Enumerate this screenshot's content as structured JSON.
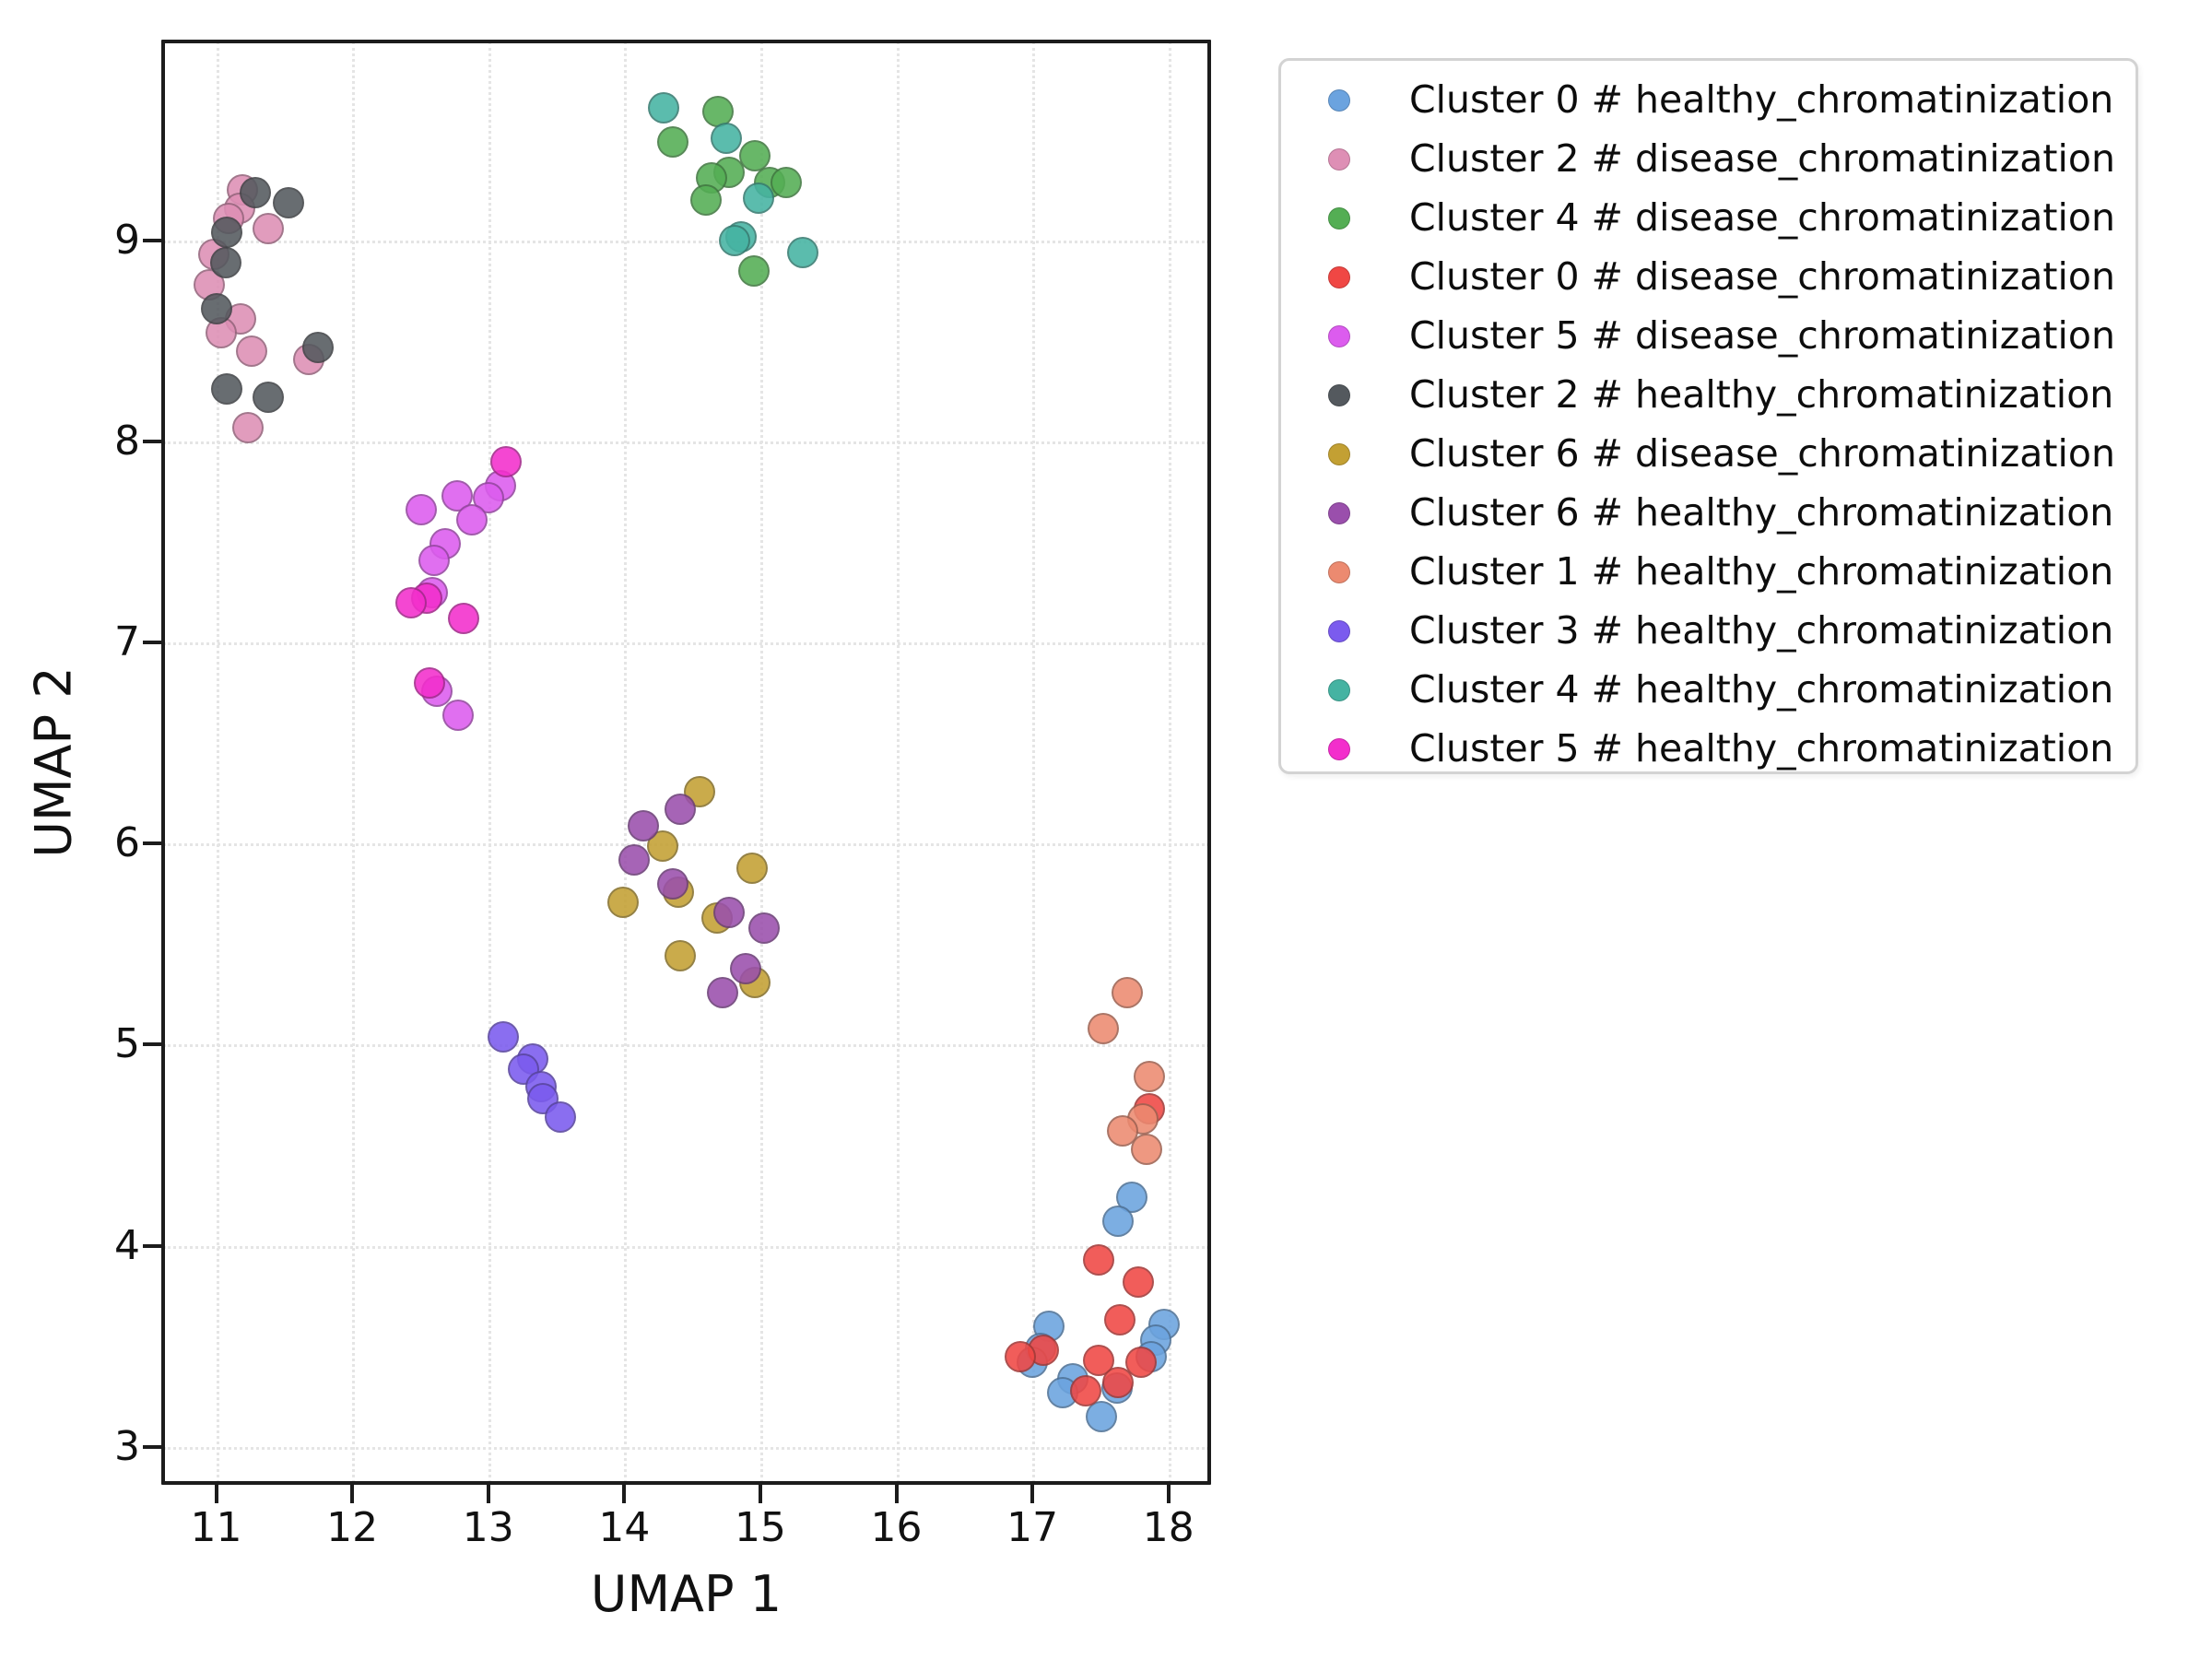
{
  "chart_data": {
    "type": "scatter",
    "title": "",
    "xlabel": "UMAP 1",
    "ylabel": "UMAP 2",
    "xlim": [
      10.61,
      18.3
    ],
    "ylim": [
      2.82,
      9.99
    ],
    "xticks": [
      11,
      12,
      13,
      14,
      15,
      16,
      17,
      18
    ],
    "yticks": [
      3,
      4,
      5,
      6,
      7,
      8,
      9
    ],
    "grid": true,
    "grid_style": "dotted",
    "legend_position": "outside-upper-right",
    "marker": "circle",
    "series": [
      {
        "name": "Cluster 0 # healthy_chromatinization",
        "color": "#6BA3DF",
        "points": [
          [
            17.73,
            4.24
          ],
          [
            17.63,
            4.12
          ],
          [
            17.97,
            3.61
          ],
          [
            17.91,
            3.53
          ],
          [
            17.87,
            3.45
          ],
          [
            17.12,
            3.6
          ],
          [
            17.06,
            3.49
          ],
          [
            17.0,
            3.42
          ],
          [
            17.3,
            3.34
          ],
          [
            17.62,
            3.29
          ],
          [
            17.22,
            3.27
          ],
          [
            17.51,
            3.15
          ]
        ]
      },
      {
        "name": "Cluster 2 # disease_chromatinization",
        "color": "#DE8FB5",
        "points": [
          [
            11.19,
            9.25
          ],
          [
            11.17,
            9.16
          ],
          [
            11.09,
            9.11
          ],
          [
            11.38,
            9.06
          ],
          [
            10.98,
            8.93
          ],
          [
            10.95,
            8.78
          ],
          [
            11.18,
            8.61
          ],
          [
            11.04,
            8.54
          ],
          [
            11.26,
            8.45
          ],
          [
            11.68,
            8.41
          ],
          [
            11.23,
            8.07
          ]
        ]
      },
      {
        "name": "Cluster 4 # disease_chromatinization",
        "color": "#54AE54",
        "points": [
          [
            14.69,
            9.64
          ],
          [
            14.36,
            9.49
          ],
          [
            14.96,
            9.42
          ],
          [
            14.77,
            9.34
          ],
          [
            14.64,
            9.31
          ],
          [
            15.07,
            9.29
          ],
          [
            15.19,
            9.29
          ],
          [
            14.6,
            9.2
          ],
          [
            14.95,
            8.85
          ]
        ]
      },
      {
        "name": "Cluster 0 # disease_chromatinization",
        "color": "#F04744",
        "points": [
          [
            17.86,
            4.68
          ],
          [
            17.49,
            3.93
          ],
          [
            17.78,
            3.82
          ],
          [
            17.64,
            3.63
          ],
          [
            17.08,
            3.48
          ],
          [
            16.91,
            3.45
          ],
          [
            17.8,
            3.42
          ],
          [
            17.49,
            3.43
          ],
          [
            17.63,
            3.32
          ],
          [
            17.39,
            3.28
          ]
        ]
      },
      {
        "name": "Cluster 5 # disease_chromatinization",
        "color": "#DC5CEE",
        "points": [
          [
            13.09,
            7.78
          ],
          [
            12.77,
            7.73
          ],
          [
            13.0,
            7.72
          ],
          [
            12.51,
            7.66
          ],
          [
            12.88,
            7.61
          ],
          [
            12.68,
            7.49
          ],
          [
            12.6,
            7.41
          ],
          [
            12.59,
            7.25
          ],
          [
            12.62,
            6.76
          ],
          [
            12.78,
            6.64
          ]
        ]
      },
      {
        "name": "Cluster 2 # healthy_chromatinization",
        "color": "#54595E",
        "points": [
          [
            11.29,
            9.24
          ],
          [
            11.53,
            9.19
          ],
          [
            11.08,
            9.04
          ],
          [
            11.07,
            8.89
          ],
          [
            11.0,
            8.66
          ],
          [
            11.75,
            8.47
          ],
          [
            11.08,
            8.26
          ],
          [
            11.38,
            8.22
          ]
        ]
      },
      {
        "name": "Cluster 6 # disease_chromatinization",
        "color": "#C3A033",
        "points": [
          [
            14.55,
            6.26
          ],
          [
            14.28,
            5.99
          ],
          [
            14.94,
            5.88
          ],
          [
            14.4,
            5.76
          ],
          [
            13.99,
            5.71
          ],
          [
            14.68,
            5.63
          ],
          [
            14.41,
            5.44
          ],
          [
            14.96,
            5.31
          ]
        ]
      },
      {
        "name": "Cluster 6 # healthy_chromatinization",
        "color": "#9A4FAC",
        "points": [
          [
            14.41,
            6.17
          ],
          [
            14.14,
            6.09
          ],
          [
            14.07,
            5.92
          ],
          [
            14.36,
            5.8
          ],
          [
            14.77,
            5.66
          ],
          [
            15.03,
            5.58
          ],
          [
            14.89,
            5.38
          ],
          [
            14.72,
            5.26
          ]
        ]
      },
      {
        "name": "Cluster 1 # healthy_chromatinization",
        "color": "#EC8A70",
        "points": [
          [
            17.7,
            5.26
          ],
          [
            17.52,
            5.08
          ],
          [
            17.86,
            4.84
          ],
          [
            17.81,
            4.63
          ],
          [
            17.66,
            4.57
          ],
          [
            17.84,
            4.48
          ]
        ]
      },
      {
        "name": "Cluster 3 # healthy_chromatinization",
        "color": "#7B5BEE",
        "points": [
          [
            13.11,
            5.04
          ],
          [
            13.33,
            4.93
          ],
          [
            13.26,
            4.88
          ],
          [
            13.39,
            4.79
          ],
          [
            13.4,
            4.73
          ],
          [
            13.53,
            4.64
          ]
        ]
      },
      {
        "name": "Cluster 4 # healthy_chromatinization",
        "color": "#45B3A2",
        "points": [
          [
            14.29,
            9.66
          ],
          [
            14.75,
            9.51
          ],
          [
            14.99,
            9.21
          ],
          [
            14.86,
            9.02
          ],
          [
            14.81,
            9.0
          ],
          [
            15.31,
            8.94
          ]
        ]
      },
      {
        "name": "Cluster 5 # healthy_chromatinization",
        "color": "#F32ECC",
        "points": [
          [
            13.13,
            7.9
          ],
          [
            12.55,
            7.22
          ],
          [
            12.43,
            7.2
          ],
          [
            12.82,
            7.12
          ],
          [
            12.57,
            6.8
          ]
        ]
      }
    ]
  }
}
